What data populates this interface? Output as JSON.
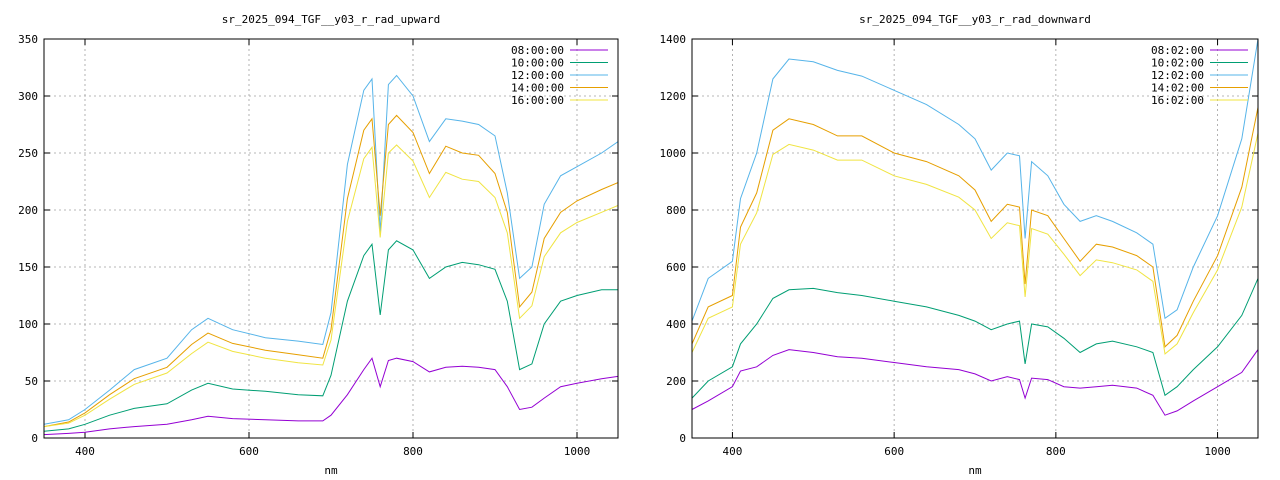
{
  "chart_data": [
    {
      "type": "line",
      "title": "sr_2025_094_TGF__y03_r_rad_upward",
      "xlabel": "nm",
      "ylabel": "",
      "xlim": [
        350,
        1050
      ],
      "ylim": [
        0,
        350
      ],
      "xticks": [
        400,
        600,
        800,
        1000
      ],
      "yticks": [
        0,
        50,
        100,
        150,
        200,
        250,
        300,
        350
      ],
      "grid": true,
      "legend": "top-right",
      "series": [
        {
          "name": "08:00:00",
          "color": "#9400d3",
          "x": [
            350,
            380,
            400,
            430,
            460,
            500,
            530,
            550,
            580,
            620,
            660,
            690,
            700,
            720,
            740,
            750,
            760,
            770,
            780,
            800,
            820,
            840,
            860,
            880,
            900,
            915,
            930,
            945,
            960,
            980,
            1000,
            1030,
            1050
          ],
          "y": [
            3,
            4,
            5,
            8,
            10,
            12,
            16,
            19,
            17,
            16,
            15,
            15,
            20,
            38,
            60,
            70,
            45,
            68,
            70,
            67,
            58,
            62,
            63,
            62,
            60,
            45,
            25,
            27,
            35,
            45,
            48,
            52,
            54
          ]
        },
        {
          "name": "10:00:00",
          "color": "#009e73",
          "x": [
            350,
            380,
            400,
            430,
            460,
            500,
            530,
            550,
            580,
            620,
            660,
            690,
            700,
            720,
            740,
            750,
            760,
            770,
            780,
            800,
            820,
            840,
            860,
            880,
            900,
            915,
            930,
            945,
            960,
            980,
            1000,
            1030,
            1050
          ],
          "y": [
            6,
            8,
            12,
            20,
            26,
            30,
            42,
            48,
            43,
            41,
            38,
            37,
            55,
            120,
            160,
            170,
            108,
            165,
            173,
            165,
            140,
            150,
            154,
            152,
            148,
            120,
            60,
            65,
            100,
            120,
            125,
            130,
            130
          ]
        },
        {
          "name": "12:00:00",
          "color": "#56b4e9",
          "x": [
            350,
            380,
            400,
            430,
            460,
            500,
            530,
            550,
            580,
            620,
            660,
            690,
            700,
            720,
            740,
            750,
            760,
            770,
            780,
            800,
            820,
            840,
            860,
            880,
            900,
            915,
            930,
            945,
            960,
            980,
            1000,
            1030,
            1050
          ],
          "y": [
            12,
            16,
            25,
            42,
            60,
            70,
            95,
            105,
            95,
            88,
            85,
            82,
            110,
            240,
            305,
            315,
            180,
            310,
            318,
            300,
            260,
            280,
            278,
            275,
            265,
            215,
            140,
            150,
            205,
            230,
            238,
            250,
            260
          ]
        },
        {
          "name": "14:00:00",
          "color": "#e69f00",
          "x": [
            350,
            380,
            400,
            430,
            460,
            500,
            530,
            550,
            580,
            620,
            660,
            690,
            700,
            720,
            740,
            750,
            760,
            770,
            780,
            800,
            820,
            840,
            860,
            880,
            900,
            915,
            930,
            945,
            960,
            980,
            1000,
            1030,
            1050
          ],
          "y": [
            10,
            14,
            22,
            38,
            52,
            62,
            82,
            92,
            83,
            77,
            73,
            70,
            95,
            210,
            270,
            280,
            195,
            275,
            283,
            268,
            232,
            256,
            250,
            248,
            232,
            198,
            115,
            128,
            175,
            198,
            208,
            218,
            224
          ]
        },
        {
          "name": "16:00:00",
          "color": "#f0e442",
          "x": [
            350,
            380,
            400,
            430,
            460,
            500,
            530,
            550,
            580,
            620,
            660,
            690,
            700,
            720,
            740,
            750,
            760,
            770,
            780,
            800,
            820,
            840,
            860,
            880,
            900,
            915,
            930,
            945,
            960,
            980,
            1000,
            1030,
            1050
          ],
          "y": [
            10,
            13,
            20,
            34,
            47,
            57,
            74,
            84,
            76,
            70,
            66,
            64,
            86,
            190,
            245,
            255,
            176,
            250,
            257,
            243,
            211,
            233,
            227,
            225,
            211,
            180,
            105,
            116,
            159,
            180,
            189,
            198,
            204
          ]
        }
      ]
    },
    {
      "type": "line",
      "title": "sr_2025_094_TGF__y03_r_rad_downward",
      "xlabel": "nm",
      "ylabel": "",
      "xlim": [
        350,
        1050
      ],
      "ylim": [
        0,
        1400
      ],
      "xticks": [
        400,
        600,
        800,
        1000
      ],
      "yticks": [
        0,
        200,
        400,
        600,
        800,
        1000,
        1200,
        1400
      ],
      "grid": true,
      "legend": "top-right",
      "series": [
        {
          "name": "08:02:00",
          "color": "#9400d3",
          "x": [
            350,
            370,
            400,
            410,
            430,
            450,
            470,
            500,
            530,
            560,
            600,
            640,
            680,
            700,
            720,
            740,
            755,
            762,
            770,
            790,
            810,
            830,
            850,
            870,
            900,
            920,
            935,
            950,
            970,
            1000,
            1030,
            1050
          ],
          "y": [
            100,
            130,
            180,
            235,
            250,
            290,
            310,
            300,
            285,
            280,
            265,
            250,
            240,
            225,
            200,
            215,
            205,
            140,
            210,
            205,
            180,
            175,
            180,
            185,
            175,
            150,
            80,
            95,
            130,
            180,
            230,
            310
          ]
        },
        {
          "name": "10:02:00",
          "color": "#009e73",
          "x": [
            350,
            370,
            400,
            410,
            430,
            450,
            470,
            500,
            530,
            560,
            600,
            640,
            680,
            700,
            720,
            740,
            755,
            762,
            770,
            790,
            810,
            830,
            850,
            870,
            900,
            920,
            935,
            950,
            970,
            1000,
            1030,
            1050
          ],
          "y": [
            140,
            200,
            250,
            330,
            400,
            490,
            520,
            525,
            510,
            500,
            480,
            460,
            430,
            410,
            380,
            400,
            410,
            260,
            400,
            390,
            350,
            300,
            330,
            340,
            320,
            300,
            150,
            180,
            240,
            320,
            430,
            560
          ]
        },
        {
          "name": "12:02:00",
          "color": "#56b4e9",
          "x": [
            350,
            370,
            400,
            410,
            430,
            450,
            470,
            500,
            530,
            560,
            600,
            640,
            680,
            700,
            720,
            740,
            755,
            762,
            770,
            790,
            810,
            830,
            850,
            870,
            900,
            920,
            935,
            950,
            970,
            1000,
            1030,
            1050
          ],
          "y": [
            410,
            560,
            620,
            840,
            1000,
            1260,
            1330,
            1320,
            1290,
            1270,
            1220,
            1170,
            1100,
            1050,
            940,
            1000,
            990,
            700,
            970,
            920,
            820,
            760,
            780,
            760,
            720,
            680,
            420,
            450,
            600,
            780,
            1050,
            1400
          ]
        },
        {
          "name": "14:02:00",
          "color": "#e69f00",
          "x": [
            350,
            370,
            400,
            410,
            430,
            450,
            470,
            500,
            530,
            560,
            600,
            640,
            680,
            700,
            720,
            740,
            755,
            762,
            770,
            790,
            810,
            830,
            850,
            870,
            900,
            920,
            935,
            950,
            970,
            1000,
            1030,
            1050
          ],
          "y": [
            330,
            460,
            500,
            740,
            860,
            1080,
            1120,
            1100,
            1060,
            1060,
            1000,
            970,
            920,
            870,
            760,
            820,
            810,
            540,
            800,
            780,
            700,
            620,
            680,
            670,
            640,
            600,
            320,
            360,
            480,
            640,
            880,
            1160
          ]
        },
        {
          "name": "16:02:00",
          "color": "#f0e442",
          "x": [
            350,
            370,
            400,
            410,
            430,
            450,
            470,
            500,
            530,
            560,
            600,
            640,
            680,
            700,
            720,
            740,
            755,
            762,
            770,
            790,
            810,
            830,
            850,
            870,
            900,
            920,
            935,
            950,
            970,
            1000,
            1030,
            1050
          ],
          "y": [
            300,
            420,
            460,
            680,
            790,
            995,
            1030,
            1010,
            975,
            975,
            920,
            890,
            845,
            800,
            700,
            755,
            745,
            495,
            735,
            715,
            645,
            570,
            625,
            615,
            590,
            550,
            295,
            330,
            440,
            590,
            810,
            1070
          ]
        }
      ]
    }
  ]
}
